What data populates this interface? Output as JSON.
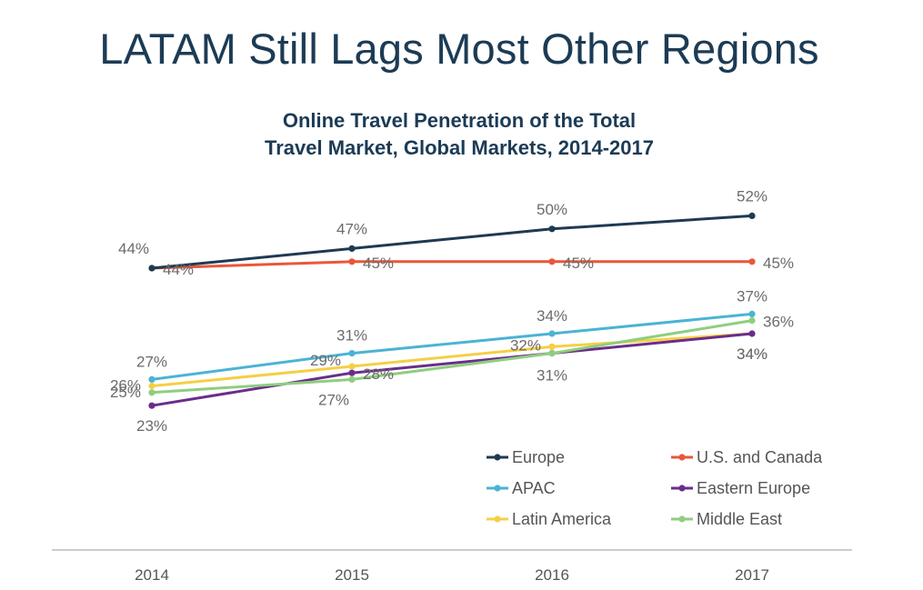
{
  "slide": {
    "title": "LATAM Still Lags Most Other Regions"
  },
  "chart_data": {
    "type": "line",
    "title_lines": [
      "Online Travel Penetration of the Total",
      "Travel Market, Global Markets, 2014-2017"
    ],
    "xlabel": "",
    "ylabel": "",
    "categories": [
      "2014",
      "2015",
      "2016",
      "2017"
    ],
    "ylim": [
      15,
      60
    ],
    "grid": false,
    "legend_position": "bottom-right",
    "series": [
      {
        "name": "Europe",
        "color": "#1f3a52",
        "values": [
          44,
          47,
          50,
          52
        ],
        "labels": [
          "44%",
          "47%",
          "50%",
          "52%"
        ]
      },
      {
        "name": "U.S. and Canada",
        "color": "#e8573a",
        "values": [
          44,
          45,
          45,
          45
        ],
        "labels": [
          "44%",
          "45%",
          "45%",
          "45%"
        ]
      },
      {
        "name": "APAC",
        "color": "#4bb3d4",
        "values": [
          27,
          31,
          34,
          37
        ],
        "labels": [
          "27%",
          "31%",
          "34%",
          "37%"
        ]
      },
      {
        "name": "Eastern Europe",
        "color": "#6a2d8c",
        "values": [
          23,
          28,
          31,
          34
        ],
        "labels": [
          "23%",
          "28%",
          "31%",
          "34%"
        ]
      },
      {
        "name": "Latin America",
        "color": "#f5cf45",
        "values": [
          26,
          29,
          32,
          34
        ],
        "labels": [
          "26%",
          "29%",
          "32%",
          "34%"
        ]
      },
      {
        "name": "Middle East",
        "color": "#8fce7f",
        "values": [
          25,
          27,
          31,
          36
        ],
        "labels": [
          "25%",
          "27%",
          "31%",
          "36%"
        ]
      }
    ]
  }
}
